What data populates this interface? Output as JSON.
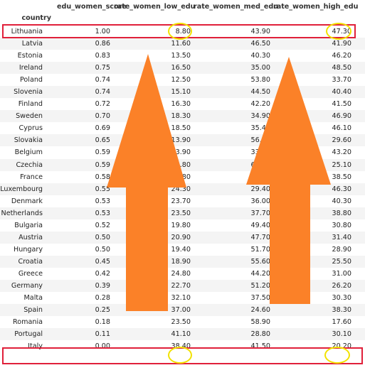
{
  "table": {
    "index_name": "country",
    "columns": [
      "edu_women_score",
      "rate_women_low_edu",
      "rate_women_med_edu",
      "rate_women_high_edu"
    ],
    "rows": [
      [
        "Lithuania",
        "1.00",
        "8.80",
        "43.90",
        "47.30"
      ],
      [
        "Latvia",
        "0.86",
        "11.60",
        "46.50",
        "41.90"
      ],
      [
        "Estonia",
        "0.83",
        "13.50",
        "40.30",
        "46.20"
      ],
      [
        "Ireland",
        "0.75",
        "16.50",
        "35.00",
        "48.50"
      ],
      [
        "Poland",
        "0.74",
        "12.50",
        "53.80",
        "33.70"
      ],
      [
        "Slovenia",
        "0.74",
        "15.10",
        "44.50",
        "40.40"
      ],
      [
        "Finland",
        "0.72",
        "16.30",
        "42.20",
        "41.50"
      ],
      [
        "Sweden",
        "0.70",
        "18.30",
        "34.90",
        "46.90"
      ],
      [
        "Cyprus",
        "0.69",
        "18.50",
        "35.40",
        "46.10"
      ],
      [
        "Slovakia",
        "0.65",
        "13.90",
        "56.50",
        "29.60"
      ],
      [
        "Belgium",
        "0.59",
        "23.90",
        "33.00",
        "43.20"
      ],
      [
        "Czechia",
        "0.59",
        "14.80",
        "60.10",
        "25.10"
      ],
      [
        "France",
        "0.58",
        "21.80",
        "39.70",
        "38.50"
      ],
      [
        "Luxembourg",
        "0.55",
        "24.30",
        "29.40",
        "46.30"
      ],
      [
        "Denmark",
        "0.53",
        "23.70",
        "36.00",
        "40.30"
      ],
      [
        "Netherlands",
        "0.53",
        "23.50",
        "37.70",
        "38.80"
      ],
      [
        "Bulgaria",
        "0.52",
        "19.80",
        "49.40",
        "30.80"
      ],
      [
        "Austria",
        "0.50",
        "20.90",
        "47.70",
        "31.40"
      ],
      [
        "Hungary",
        "0.50",
        "19.40",
        "51.70",
        "28.90"
      ],
      [
        "Croatia",
        "0.45",
        "18.90",
        "55.60",
        "25.50"
      ],
      [
        "Greece",
        "0.42",
        "24.80",
        "44.20",
        "31.00"
      ],
      [
        "Germany",
        "0.39",
        "22.70",
        "51.20",
        "26.20"
      ],
      [
        "Malta",
        "0.28",
        "32.10",
        "37.50",
        "30.30"
      ],
      [
        "Spain",
        "0.25",
        "37.00",
        "24.60",
        "38.30"
      ],
      [
        "Romania",
        "0.18",
        "23.50",
        "58.90",
        "17.60"
      ],
      [
        "Portugal",
        "0.11",
        "41.10",
        "28.80",
        "30.10"
      ],
      [
        "Italy",
        "0.00",
        "38.40",
        "41.50",
        "20.20"
      ]
    ]
  },
  "annotation_colors": {
    "highlight_box": "#e0203a",
    "circle": "#f2e200",
    "arrow": "#fb8128"
  }
}
